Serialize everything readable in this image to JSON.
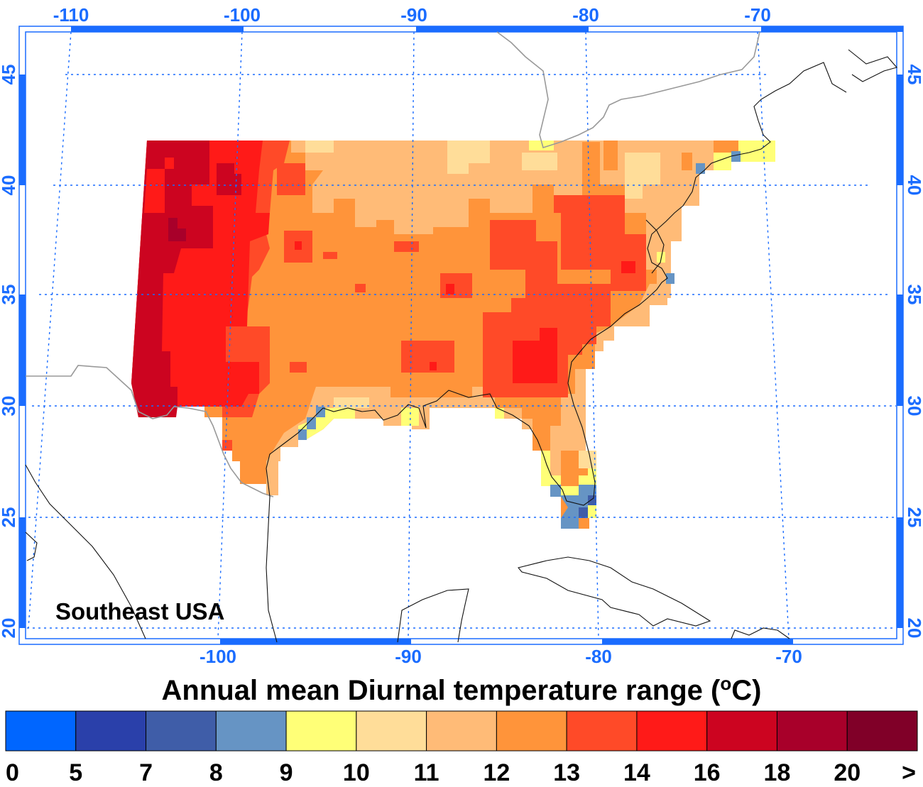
{
  "map": {
    "region_label": "Southeast USA",
    "title": {
      "prefix": "Annual mean Diurnal temperature range (",
      "unit_sup": "o",
      "unit": "C",
      "suffix": ")"
    },
    "lon_top_labels": [
      "-110",
      "-100",
      "-90",
      "-80",
      "-70"
    ],
    "lon_bottom_labels": [
      "-100",
      "-90",
      "-80",
      "-70"
    ],
    "lat_labels": [
      "45",
      "40",
      "35",
      "30",
      "25",
      "20"
    ],
    "axis_color": "#1a6cff"
  },
  "colorbar": {
    "tick_labels": [
      "0",
      "5",
      "7",
      "8",
      "9",
      "10",
      "11",
      "12",
      "13",
      "14",
      "16",
      "18",
      "20",
      ">"
    ],
    "colors": [
      "#0066ff",
      "#2a40aa",
      "#3f5da8",
      "#6694c4",
      "#ffff77",
      "#ffdd99",
      "#ffbb77",
      "#ff943a",
      "#ff4a28",
      "#ff1a18",
      "#cc0420",
      "#a8002a",
      "#800028"
    ]
  }
}
